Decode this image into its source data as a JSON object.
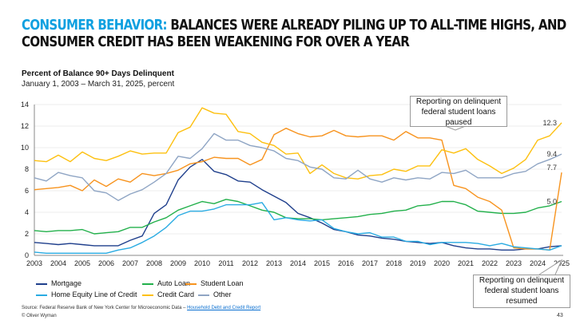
{
  "title": {
    "highlight": "CONSUMER BEHAVIOR:",
    "rest": " BALANCES WERE ALREADY PILING UP TO ALL-TIME HIGHS, AND",
    "line2": "CONSUMER CREDIT HAS BEEN WEAKENING FOR OVER A YEAR"
  },
  "subtitle": "Percent of Balance 90+ Days Delinquent",
  "date_range": "January 1, 2003 – March 31, 2025, percent",
  "callouts": {
    "paused": "Reporting on delinquent federal student loans paused",
    "resumed": "Reporting on delinquent federal student loans resumed"
  },
  "source": {
    "text": "Source: Federal Reserve Bank of New York Center for Microeconomic Data – ",
    "link": "Household Debt and Credit Report"
  },
  "copyright": "© Oliver Wyman",
  "page_number": "43",
  "chart_data": {
    "type": "line",
    "xlabel": "",
    "ylabel": "",
    "ylim": [
      0,
      14
    ],
    "xlim": [
      2003,
      2025
    ],
    "yticks": [
      "0",
      "2",
      "4",
      "6",
      "8",
      "10",
      "12",
      "14"
    ],
    "xticks": [
      "2003",
      "2004",
      "2005",
      "2006",
      "2007",
      "2008",
      "2009",
      "2010",
      "2011",
      "2012",
      "2013",
      "2014",
      "2015",
      "2016",
      "2017",
      "2018",
      "2019",
      "2020",
      "2021",
      "2022",
      "2023",
      "2024",
      "2025"
    ],
    "grid": true,
    "legend": "bottom-left",
    "x": [
      2003,
      2003.5,
      2004,
      2004.5,
      2005,
      2005.5,
      2006,
      2006.5,
      2007,
      2007.5,
      2008,
      2008.5,
      2009,
      2009.5,
      2010,
      2010.5,
      2011,
      2011.5,
      2012,
      2012.5,
      2013,
      2013.5,
      2014,
      2014.5,
      2015,
      2015.5,
      2016,
      2016.5,
      2017,
      2017.5,
      2018,
      2018.5,
      2019,
      2019.5,
      2020,
      2020.5,
      2021,
      2021.5,
      2022,
      2022.5,
      2023,
      2023.5,
      2024,
      2024.5,
      2025
    ],
    "series": [
      {
        "name": "Mortgage",
        "color": "#1f3f8c",
        "values": [
          1.2,
          1.1,
          1.0,
          1.1,
          1.0,
          0.9,
          0.9,
          0.9,
          1.4,
          1.8,
          3.9,
          4.7,
          7.0,
          8.2,
          8.9,
          7.8,
          7.5,
          6.9,
          6.8,
          6.1,
          5.5,
          4.9,
          3.9,
          3.5,
          3.0,
          2.4,
          2.2,
          1.9,
          1.8,
          1.6,
          1.5,
          1.3,
          1.2,
          1.1,
          1.2,
          0.9,
          0.7,
          0.6,
          0.6,
          0.5,
          0.5,
          0.6,
          0.6,
          0.8,
          0.9
        ]
      },
      {
        "name": "Auto Loan",
        "color": "#22b04b",
        "values": [
          2.3,
          2.2,
          2.3,
          2.3,
          2.4,
          2.0,
          2.1,
          2.2,
          2.6,
          2.6,
          3.1,
          3.5,
          4.2,
          4.6,
          5.0,
          4.8,
          5.2,
          5.0,
          4.6,
          4.2,
          4.0,
          3.5,
          3.4,
          3.4,
          3.3,
          3.4,
          3.5,
          3.6,
          3.8,
          3.9,
          4.1,
          4.2,
          4.6,
          4.7,
          5.0,
          5.0,
          4.7,
          4.1,
          4.0,
          3.9,
          3.9,
          4.0,
          4.4,
          4.6,
          5.0
        ]
      },
      {
        "name": "Student Loan",
        "color": "#f7931e",
        "values": [
          6.1,
          6.2,
          6.3,
          6.5,
          6.0,
          7.0,
          6.4,
          7.1,
          6.8,
          7.6,
          7.4,
          7.6,
          7.9,
          8.5,
          8.7,
          9.1,
          9.0,
          9.0,
          8.4,
          8.9,
          11.2,
          11.8,
          11.3,
          11.0,
          11.1,
          11.6,
          11.1,
          11.0,
          11.1,
          11.1,
          10.7,
          11.5,
          10.9,
          10.9,
          10.7,
          6.5,
          6.2,
          5.4,
          5.0,
          4.2,
          0.7,
          0.6,
          0.6,
          0.5,
          7.7
        ]
      },
      {
        "name": "Home Equity Line of Credit",
        "color": "#29abe2",
        "values": [
          0.3,
          0.2,
          0.2,
          0.2,
          0.2,
          0.2,
          0.2,
          0.5,
          0.7,
          1.2,
          1.8,
          2.6,
          3.7,
          4.1,
          4.1,
          4.3,
          4.7,
          4.7,
          4.7,
          4.9,
          3.3,
          3.5,
          3.3,
          3.2,
          3.3,
          2.5,
          2.2,
          2.0,
          2.1,
          1.7,
          1.7,
          1.3,
          1.3,
          1.0,
          1.2,
          1.2,
          1.2,
          1.1,
          0.9,
          1.1,
          0.8,
          0.7,
          0.6,
          0.5,
          0.9
        ]
      },
      {
        "name": "Credit Card",
        "color": "#fdc010",
        "values": [
          8.8,
          8.7,
          9.3,
          8.7,
          9.6,
          9.0,
          8.8,
          9.2,
          9.7,
          9.4,
          9.5,
          9.5,
          11.4,
          11.9,
          13.7,
          13.2,
          13.1,
          11.5,
          11.3,
          10.5,
          10.2,
          9.4,
          9.5,
          7.6,
          8.4,
          7.6,
          7.2,
          7.1,
          7.4,
          7.5,
          8.0,
          7.8,
          8.3,
          8.3,
          9.8,
          9.5,
          9.9,
          8.9,
          8.3,
          7.6,
          8.1,
          8.9,
          10.7,
          11.1,
          12.3
        ]
      },
      {
        "name": "Other",
        "color": "#8fa5c4",
        "values": [
          7.2,
          6.9,
          7.7,
          7.4,
          7.2,
          6.0,
          5.8,
          5.1,
          5.7,
          6.1,
          6.8,
          7.6,
          9.2,
          9.0,
          9.9,
          11.3,
          10.7,
          10.7,
          10.2,
          10.0,
          9.7,
          9.0,
          8.8,
          8.2,
          8.0,
          7.2,
          7.1,
          7.9,
          7.1,
          6.8,
          7.2,
          7.0,
          7.2,
          7.1,
          7.7,
          7.6,
          7.9,
          7.2,
          7.2,
          7.2,
          7.6,
          7.8,
          8.5,
          8.9,
          9.4
        ]
      }
    ],
    "end_labels": [
      "12.3",
      "9.4",
      "7.7",
      "5.0"
    ]
  }
}
